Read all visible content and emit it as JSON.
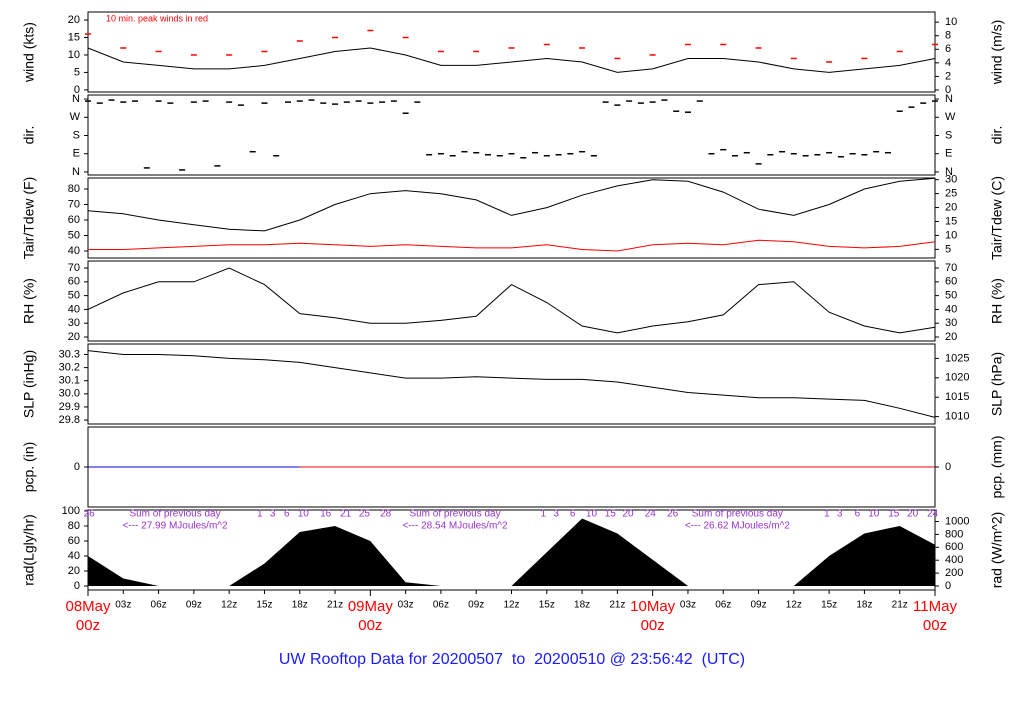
{
  "chart_data": [
    {
      "type": "line",
      "ylabel": "wind (kts)",
      "y2label": "wind (m/s)",
      "annotation": "10 min. peak winds in red",
      "ylim": [
        -0.6,
        22.3
      ],
      "yticks": [
        0,
        5,
        10,
        15,
        20
      ],
      "y2lim": [
        -0.3,
        11.5
      ],
      "y2ticks": [
        0,
        2,
        4,
        6,
        8,
        10
      ],
      "x": [
        0,
        3,
        6,
        9,
        12,
        15,
        18,
        21,
        24,
        27,
        30,
        33,
        36,
        39,
        42,
        45,
        48,
        51,
        54,
        57,
        60,
        63,
        66,
        69,
        72
      ],
      "series": [
        {
          "color": "#000000",
          "mark": "line",
          "values": [
            12,
            8,
            7,
            6,
            6,
            7,
            9,
            11,
            12,
            10,
            7,
            7,
            8,
            9,
            8,
            5,
            6,
            9,
            9,
            8,
            6,
            5,
            6,
            7,
            9
          ]
        },
        {
          "color": "#ff0000",
          "mark": "dash",
          "values": [
            16,
            12,
            11,
            10,
            10,
            11,
            14,
            15,
            17,
            15,
            11,
            11,
            12,
            13,
            12,
            9,
            10,
            13,
            13,
            12,
            9,
            8,
            9,
            11,
            13
          ]
        }
      ]
    },
    {
      "type": "scatter",
      "ylabel": "dir.",
      "y2label": "dir.",
      "ylim": [
        -15,
        380
      ],
      "yticks": [
        {
          "value": 0,
          "label": "N"
        },
        {
          "value": 90,
          "label": "E"
        },
        {
          "value": 180,
          "label": "S"
        },
        {
          "value": 270,
          "label": "W"
        },
        {
          "value": 360,
          "label": "N"
        }
      ],
      "y2lim": [
        -15,
        380
      ],
      "y2ticks": [
        {
          "value": 0,
          "label": "N"
        },
        {
          "value": 90,
          "label": "E"
        },
        {
          "value": 180,
          "label": "S"
        },
        {
          "value": 270,
          "label": "W"
        },
        {
          "value": 360,
          "label": "N"
        }
      ],
      "x": [
        0,
        1,
        2,
        3,
        4,
        5,
        6,
        7,
        8,
        9,
        10,
        11,
        12,
        13,
        14,
        15,
        16,
        17,
        18,
        19,
        20,
        21,
        22,
        23,
        24,
        25,
        26,
        27,
        28,
        29,
        30,
        31,
        32,
        33,
        34,
        35,
        36,
        37,
        38,
        39,
        40,
        41,
        42,
        43,
        44,
        45,
        46,
        47,
        48,
        49,
        50,
        51,
        52,
        53,
        54,
        55,
        56,
        57,
        58,
        59,
        60,
        61,
        62,
        63,
        64,
        65,
        66,
        67,
        68,
        69,
        70,
        71,
        72
      ],
      "series": [
        {
          "color": "#000000",
          "mark": "dash",
          "values": [
            350,
            340,
            355,
            345,
            350,
            20,
            350,
            340,
            10,
            345,
            350,
            30,
            345,
            330,
            100,
            340,
            80,
            345,
            350,
            355,
            340,
            335,
            345,
            350,
            340,
            345,
            350,
            290,
            345,
            85,
            90,
            80,
            100,
            95,
            85,
            80,
            90,
            70,
            95,
            80,
            85,
            90,
            100,
            80,
            345,
            330,
            350,
            340,
            345,
            355,
            300,
            295,
            350,
            90,
            110,
            80,
            95,
            40,
            85,
            100,
            90,
            80,
            85,
            95,
            75,
            90,
            85,
            100,
            95,
            300,
            320,
            340,
            350
          ]
        }
      ]
    },
    {
      "type": "line",
      "ylabel": "Tair/Tdew (F)",
      "y2label": "Tair/Tdew (C)",
      "ylim": [
        35.5,
        87.1
      ],
      "yticks": [
        40,
        50,
        60,
        70,
        80
      ],
      "y2lim": [
        1.9,
        30.6
      ],
      "y2ticks": [
        5,
        10,
        15,
        20,
        25,
        30
      ],
      "x": [
        0,
        3,
        6,
        9,
        12,
        15,
        18,
        21,
        24,
        27,
        30,
        33,
        36,
        39,
        42,
        45,
        48,
        51,
        54,
        57,
        60,
        63,
        66,
        69,
        72
      ],
      "series": [
        {
          "color": "#000000",
          "mark": "line",
          "values": [
            66,
            64,
            60,
            57,
            54,
            53,
            60,
            70,
            77,
            79,
            77,
            73,
            63,
            68,
            76,
            82,
            86,
            85,
            78,
            67,
            63,
            70,
            80,
            85,
            87
          ]
        },
        {
          "color": "#ff0000",
          "mark": "line",
          "values": [
            41,
            41,
            42,
            43,
            44,
            44,
            45,
            44,
            43,
            44,
            43,
            42,
            42,
            44,
            41,
            40,
            44,
            45,
            44,
            47,
            46,
            43,
            42,
            43,
            46
          ]
        }
      ]
    },
    {
      "type": "line",
      "ylabel": "RH (%)",
      "y2label": "RH (%)",
      "ylim": [
        17.1,
        75.1
      ],
      "yticks": [
        20,
        30,
        40,
        50,
        60,
        70
      ],
      "y2lim": [
        17.1,
        75.1
      ],
      "y2ticks": [
        20,
        30,
        40,
        50,
        60,
        70
      ],
      "x": [
        0,
        3,
        6,
        9,
        12,
        15,
        18,
        21,
        24,
        27,
        30,
        33,
        36,
        39,
        42,
        45,
        48,
        51,
        54,
        57,
        60,
        63,
        66,
        69,
        72
      ],
      "series": [
        {
          "color": "#000000",
          "mark": "line",
          "values": [
            40,
            52,
            60,
            60,
            70,
            58,
            37,
            34,
            30,
            30,
            32,
            35,
            58,
            45,
            28,
            23,
            28,
            31,
            36,
            58,
            60,
            38,
            28,
            23,
            27
          ]
        }
      ]
    },
    {
      "type": "line",
      "ylabel": "SLP (inHg)",
      "y2label": "SLP (hPa)",
      "ylim": [
        29.77,
        30.38
      ],
      "yticks": [
        29.8,
        29.9,
        {
          "value": 30,
          "label": "30.0"
        },
        30.1,
        30.2,
        30.3
      ],
      "y2lim": [
        1008.1,
        1028.7
      ],
      "y2ticks": [
        1010,
        1015,
        1020,
        1025
      ],
      "x": [
        0,
        3,
        6,
        9,
        12,
        15,
        18,
        21,
        24,
        27,
        30,
        33,
        36,
        39,
        42,
        45,
        48,
        51,
        54,
        57,
        60,
        63,
        66,
        69,
        72
      ],
      "series": [
        {
          "color": "#000000",
          "mark": "line",
          "values": [
            30.33,
            30.3,
            30.3,
            30.29,
            30.27,
            30.26,
            30.24,
            30.2,
            30.16,
            30.12,
            30.12,
            30.13,
            30.12,
            30.11,
            30.11,
            30.09,
            30.05,
            30.01,
            29.99,
            29.97,
            29.97,
            29.96,
            29.95,
            29.89,
            29.82
          ]
        }
      ]
    },
    {
      "type": "line",
      "ylabel": "pcp. (in)",
      "y2label": "pcp. (mm)",
      "ylim": [
        -1,
        1
      ],
      "yticks": [
        0
      ],
      "y2lim": [
        -1,
        1
      ],
      "y2ticks": [
        0
      ],
      "x": [
        0,
        3,
        6,
        9,
        12,
        15,
        18,
        21,
        24,
        27,
        30,
        33,
        36,
        39,
        42,
        45,
        48,
        51,
        54,
        57,
        60,
        63,
        66,
        69,
        72
      ],
      "series": [
        {
          "color": "#0000cc",
          "mark": "line",
          "values": [
            0,
            0,
            0,
            0,
            0,
            0,
            0,
            null,
            null,
            null,
            null,
            null,
            null,
            null,
            null,
            null,
            null,
            null,
            null,
            null,
            null,
            null,
            null,
            null,
            null
          ]
        },
        {
          "color": "#ff0000",
          "mark": "line",
          "values": [
            null,
            null,
            null,
            null,
            null,
            null,
            0,
            0,
            0,
            0,
            0,
            0,
            0,
            0,
            0,
            0,
            0,
            0,
            0,
            0,
            0,
            0,
            0,
            0,
            0
          ]
        }
      ]
    },
    {
      "type": "area",
      "ylabel": "rad(Lgly/hr)",
      "y2label": "rad (W/m^2)",
      "ylim": [
        -5.3,
        101.3
      ],
      "yticks": [
        0,
        20,
        40,
        60,
        80,
        100
      ],
      "y2lim": [
        -61.6,
        1178.1
      ],
      "y2ticks": [
        0,
        200,
        400,
        600,
        800,
        1000
      ],
      "x": [
        0,
        3,
        6,
        9,
        12,
        15,
        18,
        21,
        24,
        27,
        30,
        33,
        36,
        39,
        42,
        45,
        48,
        51,
        54,
        57,
        60,
        63,
        66,
        69,
        72
      ],
      "series": [
        {
          "color": "#000000",
          "mark": "area",
          "values": [
            40,
            10,
            0,
            0,
            0,
            30,
            72,
            80,
            60,
            5,
            0,
            0,
            0,
            45,
            90,
            70,
            35,
            0,
            0,
            0,
            0,
            40,
            70,
            80,
            55
          ]
        }
      ],
      "hour_marks": [
        {
          "x": 0.1,
          "label": 26
        },
        {
          "x": 14.6,
          "label": 1
        },
        {
          "x": 15.7,
          "label": 3
        },
        {
          "x": 16.9,
          "label": 6
        },
        {
          "x": 18.3,
          "label": 10
        },
        {
          "x": 20.2,
          "label": 16
        },
        {
          "x": 21.9,
          "label": 21
        },
        {
          "x": 23.5,
          "label": 25
        },
        {
          "x": 25.3,
          "label": 28
        },
        {
          "x": 38.7,
          "label": 1
        },
        {
          "x": 39.8,
          "label": 3
        },
        {
          "x": 41.2,
          "label": 6
        },
        {
          "x": 42.8,
          "label": 10
        },
        {
          "x": 44.4,
          "label": 15
        },
        {
          "x": 45.9,
          "label": 20
        },
        {
          "x": 47.8,
          "label": 24
        },
        {
          "x": 49.7,
          "label": 26
        },
        {
          "x": 62.8,
          "label": 1
        },
        {
          "x": 63.9,
          "label": 3
        },
        {
          "x": 65.4,
          "label": 6
        },
        {
          "x": 66.8,
          "label": 10
        },
        {
          "x": 68.5,
          "label": 15
        },
        {
          "x": 70.1,
          "label": 20
        },
        {
          "x": 71.8,
          "label": 24
        }
      ],
      "daily_sums": [
        {
          "x": 7.4,
          "title": "Sum of previous day",
          "text": "<--- 27.99 MJoules/m^2"
        },
        {
          "x": 31.2,
          "title": "Sum of previous day",
          "text": "<--- 28.54 MJoules/m^2"
        },
        {
          "x": 55.2,
          "title": "Sum of previous day",
          "text": "<--- 26.62 MJoules/m^2"
        }
      ],
      "xlim": [
        0,
        72
      ],
      "xticks": [
        {
          "value": 3,
          "label": "03z"
        },
        {
          "value": 6,
          "label": "06z"
        },
        {
          "value": 9,
          "label": "09z"
        },
        {
          "value": 12,
          "label": "12z"
        },
        {
          "value": 15,
          "label": "15z"
        },
        {
          "value": 18,
          "label": "18z"
        },
        {
          "value": 21,
          "label": "21z"
        },
        {
          "value": 27,
          "label": "03z"
        },
        {
          "value": 30,
          "label": "06z"
        },
        {
          "value": 33,
          "label": "09z"
        },
        {
          "value": 36,
          "label": "12z"
        },
        {
          "value": 39,
          "label": "15z"
        },
        {
          "value": 42,
          "label": "18z"
        },
        {
          "value": 45,
          "label": "21z"
        },
        {
          "value": 51,
          "label": "03z"
        },
        {
          "value": 54,
          "label": "06z"
        },
        {
          "value": 57,
          "label": "09z"
        },
        {
          "value": 60,
          "label": "12z"
        },
        {
          "value": 63,
          "label": "15z"
        },
        {
          "value": 66,
          "label": "18z"
        },
        {
          "value": 69,
          "label": "21z"
        }
      ],
      "day_ticks": [
        {
          "value": 0,
          "label": "08May",
          "hour": "00z"
        },
        {
          "value": 24,
          "label": "09May",
          "hour": "00z"
        },
        {
          "value": 48,
          "label": "10May",
          "hour": "00z"
        },
        {
          "value": 72,
          "label": "11May",
          "hour": "00z"
        }
      ]
    }
  ],
  "footer": "UW Rooftop Data for 20200507  to  20200510 @ 23:56:42  (UTC)"
}
